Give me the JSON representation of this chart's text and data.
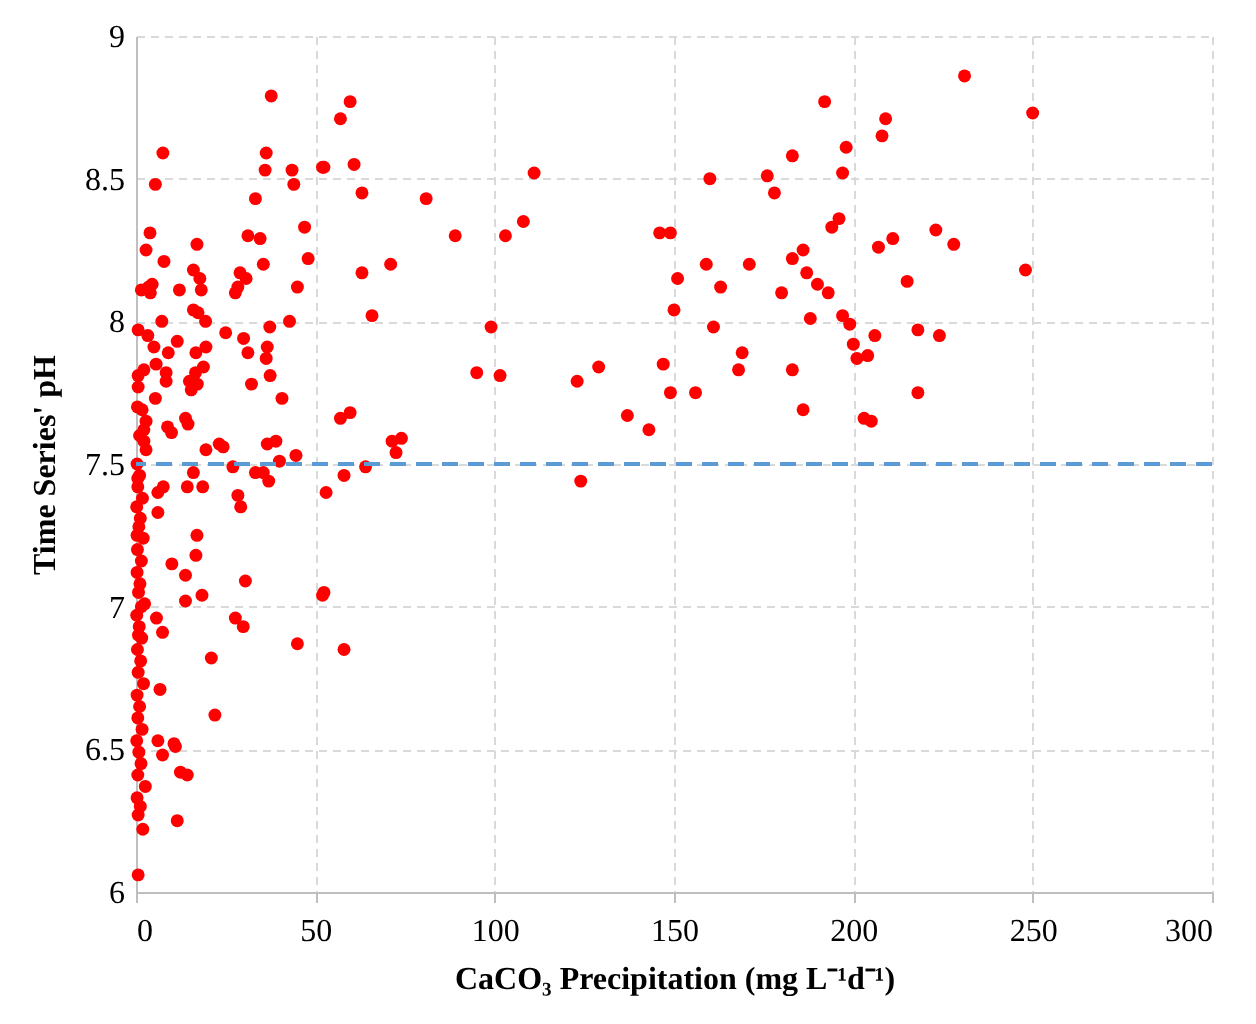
{
  "chart_data": {
    "type": "scatter",
    "xlabel": "CaCO₃ Precipitation (mg L⁻¹d⁻¹)",
    "ylabel": "Time Series' pH",
    "x": [
      80.9,
      89,
      95,
      99,
      101.5,
      103,
      108,
      111,
      123,
      124,
      129,
      137,
      143,
      146,
      149,
      147,
      149,
      151,
      150,
      156,
      159,
      160,
      161,
      163,
      168,
      171,
      169,
      176,
      178,
      180,
      183,
      183,
      183,
      186,
      186,
      187,
      188,
      190,
      192,
      193,
      194,
      196,
      197,
      200,
      198,
      197,
      201,
      199,
      204,
      206,
      207,
      203,
      205,
      209,
      208,
      211,
      215,
      218,
      218,
      223,
      224,
      228,
      231,
      248,
      250,
      59.7,
      57,
      52.4,
      60.8,
      63,
      63,
      71,
      65.8,
      57,
      59.7,
      71.4,
      74,
      72.5,
      58,
      64,
      53,
      52.4,
      37.7,
      7.5,
      5.4,
      36.3,
      36,
      43.5,
      44,
      52,
      33.3,
      3.9,
      2.8,
      7.8,
      17,
      31.2,
      34.6,
      47,
      48,
      16,
      17.8,
      18.2,
      29,
      30.7,
      35.5,
      27.7,
      28.4,
      45,
      12.1,
      1.5,
      3.5,
      4.5,
      4,
      16,
      17.3,
      19.4,
      25,
      30,
      37.3,
      42.8,
      0.6,
      7.2,
      3.3,
      5,
      9,
      11.5,
      2.2,
      5.6,
      8.4,
      8.4,
      16.7,
      19.5,
      31.2,
      36.6,
      36.3,
      16.6,
      18.8,
      37.4,
      14.9,
      17.1,
      32.2,
      0.6,
      0.6,
      5.4,
      15.4,
      40.7,
      1.7,
      2.8,
      8.8,
      9.9,
      13.8,
      14.5,
      19.5,
      23.2,
      24.3,
      36.6,
      39,
      2.2,
      2.2,
      2.8,
      16,
      14.3,
      18.6,
      27,
      28.4,
      29.2,
      37,
      33.3,
      35.5,
      40,
      44.6,
      6.1,
      7.6,
      6.1,
      17,
      16.7,
      10,
      13.8,
      30.5,
      18.4,
      13.8,
      52,
      5.7,
      7.4,
      27.7,
      29.9,
      45,
      58,
      21,
      6.7,
      22,
      6.1,
      7.4,
      10.6,
      11,
      12.4,
      14.3,
      11.5,
      0.6,
      0.3,
      1,
      0.5,
      1.8,
      0.2,
      1.2,
      0.8,
      2,
      0.4,
      1.5,
      0.3,
      1.1,
      0.7,
      2.4,
      0.2,
      0.9,
      1.6,
      0.4,
      1.3,
      0.6,
      2.1,
      0.3,
      1,
      0.5,
      1.7,
      0.2,
      0.8,
      1.4,
      0.5,
      2.6,
      0.3,
      1.2,
      0.6,
      1.9,
      0.4,
      1,
      0.3,
      0.7,
      1.5,
      0.5
    ],
    "series": [
      {
        "color": "#ff0000",
        "values": [
          8.43,
          8.3,
          7.82,
          7.98,
          7.81,
          8.3,
          8.35,
          8.52,
          7.79,
          7.44,
          7.84,
          7.67,
          7.62,
          8.31,
          8.31,
          7.85,
          7.75,
          8.15,
          8.04,
          7.75,
          8.2,
          8.5,
          7.98,
          8.12,
          7.83,
          8.2,
          7.89,
          8.51,
          8.45,
          8.1,
          7.83,
          8.58,
          8.22,
          7.69,
          8.25,
          8.17,
          8.01,
          8.13,
          8.77,
          8.1,
          8.33,
          8.36,
          8.02,
          7.92,
          8.61,
          8.52,
          7.87,
          7.99,
          7.88,
          7.95,
          8.26,
          7.66,
          7.65,
          8.71,
          8.65,
          8.29,
          8.14,
          7.97,
          7.75,
          8.32,
          7.95,
          8.27,
          8.86,
          8.18,
          8.73,
          8.77,
          8.71,
          8.54,
          8.55,
          8.45,
          8.17,
          8.2,
          8.02,
          7.66,
          7.68,
          7.58,
          7.59,
          7.54,
          7.46,
          7.49,
          7.4,
          7.05,
          8.79,
          8.59,
          8.48,
          8.59,
          8.53,
          8.53,
          8.48,
          8.54,
          8.43,
          8.31,
          8.25,
          8.21,
          8.27,
          8.3,
          8.29,
          8.33,
          8.22,
          8.18,
          8.15,
          8.11,
          8.17,
          8.15,
          8.2,
          8.1,
          8.12,
          8.12,
          8.11,
          8.11,
          8.12,
          8.13,
          8.1,
          8.04,
          8.03,
          8,
          7.96,
          7.94,
          7.98,
          8,
          7.97,
          8,
          7.95,
          7.91,
          7.89,
          7.93,
          7.83,
          7.85,
          7.82,
          7.79,
          7.89,
          7.91,
          7.89,
          7.91,
          7.87,
          7.82,
          7.84,
          7.81,
          7.79,
          7.78,
          7.78,
          7.81,
          7.77,
          7.73,
          7.76,
          7.73,
          7.69,
          7.65,
          7.63,
          7.61,
          7.66,
          7.64,
          7.55,
          7.57,
          7.56,
          7.57,
          7.58,
          7.62,
          7.58,
          7.55,
          7.47,
          7.42,
          7.42,
          7.49,
          7.39,
          7.35,
          7.44,
          7.47,
          7.47,
          7.51,
          7.53,
          7.33,
          7.42,
          7.4,
          7.25,
          7.18,
          7.15,
          7.11,
          7.09,
          7.04,
          7.02,
          7.04,
          6.96,
          6.91,
          6.96,
          6.93,
          6.87,
          6.85,
          6.82,
          6.71,
          6.62,
          6.53,
          6.48,
          6.52,
          6.51,
          6.42,
          6.41,
          6.25,
          6.06,
          7.5,
          7.46,
          7.42,
          7.38,
          7.35,
          7.31,
          7.28,
          7.24,
          7.2,
          7.16,
          7.12,
          7.08,
          7.05,
          7.01,
          6.97,
          6.93,
          6.89,
          6.85,
          6.81,
          6.77,
          6.73,
          6.69,
          6.65,
          6.61,
          6.57,
          6.53,
          6.49,
          6.45,
          6.41,
          6.37,
          6.33,
          6.3,
          6.27,
          6.22,
          7.7,
          7.6,
          7.25,
          6.9,
          7.0,
          7.45
        ]
      }
    ],
    "xlim": [
      0,
      300
    ],
    "xticks": [
      0,
      50,
      100,
      150,
      200,
      250,
      300
    ],
    "ylim": [
      6,
      9
    ],
    "yticks": [
      6,
      6.5,
      7,
      7.5,
      8,
      8.5,
      9
    ],
    "grid": true,
    "marker": "circle",
    "ref_lines": [
      {
        "axis": "y",
        "value": 7.5,
        "color": "#5b9bd5",
        "line_style": "dashed"
      }
    ]
  }
}
